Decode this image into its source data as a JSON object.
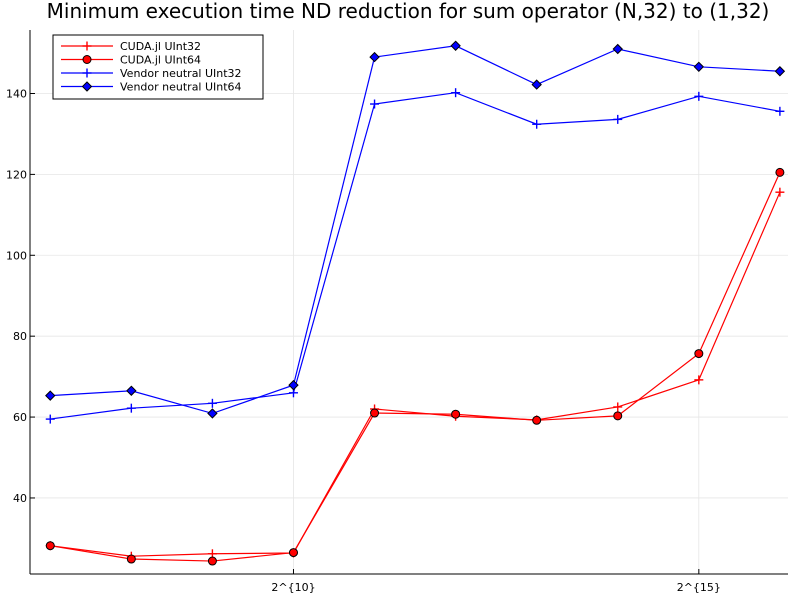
{
  "chart_data": {
    "type": "line",
    "title": "Minimum execution time ND reduction for sum operator (N,32) to (1,32)",
    "xlabel": "",
    "ylabel": "",
    "x": [
      7,
      8,
      9,
      10,
      11,
      12,
      13,
      14,
      15,
      16
    ],
    "x_ticks": [
      {
        "value": 10,
        "label": "2^{10}"
      },
      {
        "value": 15,
        "label": "2^{15}"
      }
    ],
    "xlim": [
      6.75,
      16.1
    ],
    "y_ticks": [
      {
        "value": 40,
        "label": "40"
      },
      {
        "value": 60,
        "label": "60"
      },
      {
        "value": 80,
        "label": "80"
      },
      {
        "value": 100,
        "label": "100"
      },
      {
        "value": 120,
        "label": "120"
      },
      {
        "value": 140,
        "label": "140"
      }
    ],
    "ylim": [
      21.2,
      155.7
    ],
    "grid": true,
    "legend_position": "top-left",
    "series": [
      {
        "name": "CUDA.jl UInt32",
        "color": "#ff0000",
        "marker": "plus",
        "values": [
          28.2,
          25.6,
          26.2,
          26.4,
          62.0,
          60.2,
          59.3,
          62.5,
          69.2,
          115.6
        ]
      },
      {
        "name": "CUDA.jl UInt64",
        "color": "#ff0000",
        "marker": "circle",
        "values": [
          28.2,
          24.9,
          24.4,
          26.5,
          61.0,
          60.7,
          59.2,
          60.3,
          75.7,
          120.5
        ]
      },
      {
        "name": "Vendor neutral  UInt32",
        "color": "#0000ff",
        "marker": "plus",
        "values": [
          59.5,
          62.2,
          63.4,
          66.0,
          137.4,
          140.2,
          132.4,
          133.6,
          139.3,
          135.6
        ]
      },
      {
        "name": "Vendor neutral  UInt64",
        "color": "#0000ff",
        "marker": "diamond",
        "values": [
          65.3,
          66.5,
          60.9,
          67.9,
          149.0,
          151.8,
          142.2,
          151.0,
          146.6,
          145.5
        ]
      }
    ]
  }
}
